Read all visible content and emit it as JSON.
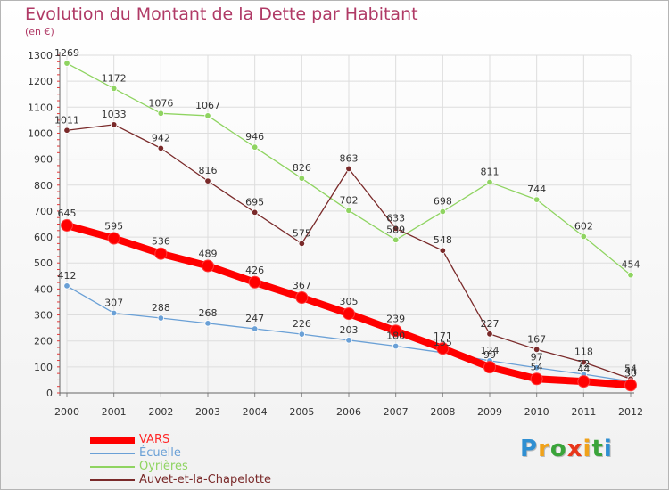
{
  "title": "Evolution du Montant de la Dette par Habitant",
  "subtitle": "(en €)",
  "logo": {
    "text": "Proxiti",
    "letter_colors": [
      "#2f8fd2",
      "#f0a21a",
      "#3aa43a",
      "#e8361a",
      "#f0a21a",
      "#3aa43a",
      "#2f8fd2"
    ]
  },
  "chart_data": {
    "type": "line",
    "title": "Evolution du Montant de la Dette par Habitant",
    "subtitle": "(en €)",
    "x": [
      "2000",
      "2001",
      "2002",
      "2003",
      "2004",
      "2005",
      "2006",
      "2007",
      "2008",
      "2009",
      "2010",
      "2011",
      "2012"
    ],
    "ylim": [
      0,
      1300
    ],
    "yticks": [
      "0",
      "100",
      "200",
      "300",
      "400",
      "500",
      "600",
      "700",
      "800",
      "900",
      "1000",
      "1100",
      "1200",
      "1300"
    ],
    "grid": true,
    "legend_position": "bottom-left",
    "series": [
      {
        "name": "VARS",
        "color": "#ff0000",
        "values": [
          645,
          595,
          536,
          489,
          426,
          367,
          305,
          239,
          171,
          99,
          54,
          44,
          30
        ],
        "labels": [
          "645",
          "595",
          "536",
          "489",
          "426",
          "367",
          "305",
          "239",
          "171",
          "99",
          "54",
          "44",
          "30"
        ]
      },
      {
        "name": "Écuelle",
        "color": "#6aa0d6",
        "values": [
          412,
          307,
          288,
          268,
          247,
          226,
          203,
          180,
          155,
          124,
          97,
          72,
          44
        ],
        "labels": [
          "412",
          "307",
          "288",
          "268",
          "247",
          "226",
          "203",
          "180",
          "155",
          "124",
          "97",
          "72",
          "44"
        ]
      },
      {
        "name": "Oyrières",
        "color": "#8fd461",
        "values": [
          1269,
          1172,
          1076,
          1067,
          946,
          826,
          702,
          589,
          698,
          811,
          744,
          602,
          454
        ],
        "labels": [
          "1269",
          "1172",
          "1076",
          "1067",
          "946",
          "826",
          "702",
          "589",
          "698",
          "811",
          "744",
          "602",
          "454"
        ]
      },
      {
        "name": "Auvet-et-la-Chapelotte",
        "color": "#7a2a2a",
        "values": [
          1011,
          1033,
          942,
          816,
          695,
          575,
          863,
          633,
          548,
          227,
          167,
          118,
          54
        ],
        "labels": [
          "1011",
          "1033",
          "942",
          "816",
          "695",
          "575",
          "863",
          "633",
          "548",
          "227",
          "167",
          "118",
          "54"
        ]
      }
    ]
  }
}
